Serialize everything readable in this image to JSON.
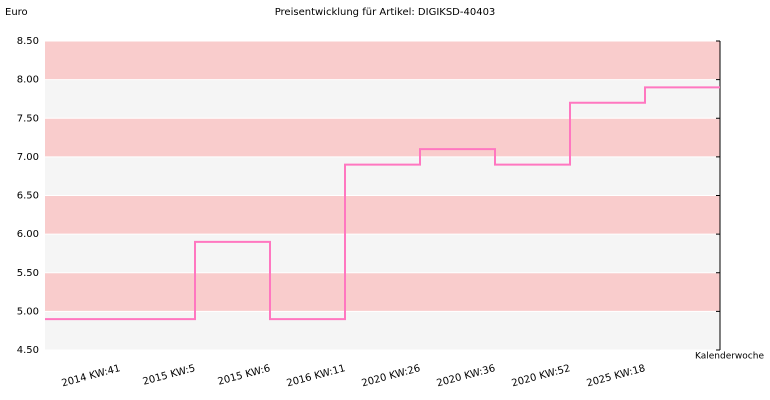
{
  "chart_data": {
    "type": "step",
    "title": "Preisentwicklung für Artikel: DIGIKSD-40403",
    "y_label": "Euro",
    "x_label": "Kalenderwoche",
    "categories": [
      "2014 KW:41",
      "2015 KW:5",
      "2015 KW:6",
      "2016 KW:11",
      "2020 KW:26",
      "2020 KW:36",
      "2020 KW:52",
      "2025 KW:18"
    ],
    "values": [
      4.9,
      5.9,
      4.9,
      6.9,
      7.1,
      6.9,
      7.7,
      7.9
    ],
    "color": "#ff77c0",
    "band_colors": [
      "#f5f5f5",
      "#f9cccc"
    ],
    "ylim": [
      4.5,
      8.5
    ],
    "yticks": [
      {
        "value": 4.5,
        "label": "4.50"
      },
      {
        "value": 5,
        "label": "5.00"
      },
      {
        "value": 5.5,
        "label": "5.50"
      },
      {
        "value": 6,
        "label": "6.00"
      },
      {
        "value": 6.5,
        "label": "6.50"
      },
      {
        "value": 7,
        "label": "7.00"
      },
      {
        "value": 7.5,
        "label": "7.50"
      },
      {
        "value": 8,
        "label": "8.00"
      },
      {
        "value": 8.5,
        "label": "8.50"
      }
    ],
    "grid": true
  }
}
